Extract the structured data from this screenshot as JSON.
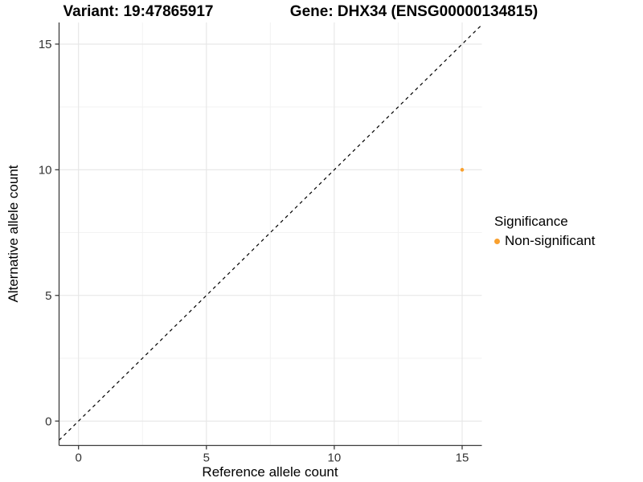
{
  "chart_data": {
    "type": "scatter",
    "title_left": "Variant: 19:47865917",
    "title_right": "Gene: DHX34 (ENSG00000134815)",
    "xlabel": "Reference allele count",
    "ylabel": "Alternative allele count",
    "xlim": [
      -0.76,
      15.77
    ],
    "ylim": [
      -0.97,
      15.86
    ],
    "x_major_ticks": [
      0,
      5,
      10,
      15
    ],
    "x_minor_ticks": [
      2.5,
      7.5,
      12.5
    ],
    "y_major_ticks": [
      0,
      5,
      10,
      15
    ],
    "y_minor_ticks": [
      2.5,
      7.5,
      12.5
    ],
    "points": [
      {
        "x": 15,
        "y": 10,
        "label": "Non-significant",
        "color": "#F9A02E"
      }
    ],
    "reference_line": {
      "type": "identity",
      "style": "dashed",
      "color": "#000000"
    },
    "legend": {
      "title": "Significance",
      "position": "right",
      "entries": [
        {
          "label": "Non-significant",
          "color": "#F9A02E"
        }
      ]
    },
    "grid": {
      "major_color": "#e6e6e6",
      "minor_color": "#f2f2f2"
    },
    "axis_color": "#3d3d3d",
    "tick_label_color": "#333333"
  }
}
